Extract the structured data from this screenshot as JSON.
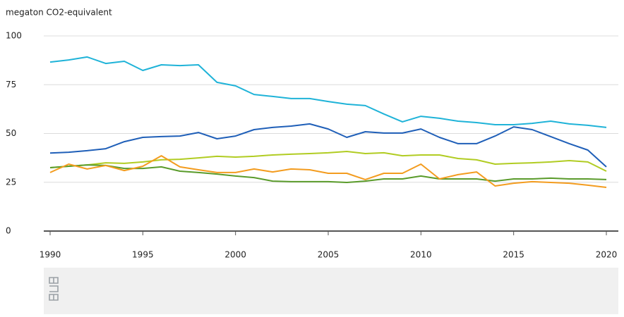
{
  "chart_data": {
    "type": "line",
    "y_label": "megaton CO2-equivalent",
    "x": [
      1990,
      1991,
      1992,
      1993,
      1994,
      1995,
      1996,
      1997,
      1998,
      1999,
      2000,
      2001,
      2002,
      2003,
      2004,
      2005,
      2006,
      2007,
      2008,
      2009,
      2010,
      2011,
      2012,
      2013,
      2014,
      2015,
      2016,
      2017,
      2018,
      2019,
      2020
    ],
    "xlim": [
      1990,
      2020
    ],
    "xticks": [
      1990,
      1995,
      2000,
      2005,
      2010,
      2015,
      2020
    ],
    "ylim": [
      0,
      100
    ],
    "yticks": [
      0,
      25,
      50,
      75,
      100
    ],
    "grid": true,
    "series": [
      {
        "color": "#1fb3d8",
        "values": [
          86.6,
          87.7,
          89.2,
          85.9,
          87,
          82.3,
          85.2,
          84.8,
          85.2,
          76.2,
          74.4,
          70,
          69,
          67.9,
          67.9,
          66.4,
          65,
          64.3,
          60,
          56,
          58.8,
          57.8,
          56.3,
          55.6,
          54.5,
          54.5,
          55.2,
          56.3,
          54.9,
          54.2,
          53.1
        ]
      },
      {
        "color": "#1f5fb8",
        "values": [
          40,
          40.4,
          41.2,
          42.2,
          45.8,
          48,
          48.4,
          48.7,
          50.5,
          47.3,
          48.7,
          52,
          53.1,
          53.8,
          54.9,
          52.3,
          48,
          50.9,
          50.2,
          50.2,
          52.3,
          48,
          44.8,
          44.8,
          48.7,
          53.4,
          52,
          48.4,
          44.8,
          41.5,
          32.9
        ]
      },
      {
        "color": "#b1cc22",
        "values": [
          32.5,
          33.2,
          33.9,
          35,
          34.7,
          35.4,
          36.5,
          36.8,
          37.5,
          38.3,
          37.9,
          38.3,
          39,
          39.4,
          39.7,
          40.1,
          40.8,
          39.7,
          40.1,
          38.6,
          39,
          39,
          37.2,
          36.5,
          34.3,
          34.7,
          35,
          35.4,
          36.1,
          35.4,
          30.7
        ]
      },
      {
        "color": "#5a9b2b",
        "values": [
          32.5,
          33.2,
          33.9,
          33.6,
          32.1,
          32.1,
          32.9,
          30.7,
          30,
          29.2,
          28.2,
          27.4,
          25.6,
          25.3,
          25.3,
          25.3,
          24.9,
          25.6,
          26.7,
          26.7,
          28.2,
          26.7,
          26.7,
          26.7,
          25.6,
          26.7,
          26.7,
          27.1,
          26.7,
          26.7,
          26.4
        ]
      },
      {
        "color": "#f39c1f",
        "values": [
          30,
          34.3,
          31.8,
          33.6,
          31,
          33.2,
          38.6,
          32.9,
          31.4,
          30,
          30,
          31.8,
          30.3,
          31.8,
          31.4,
          29.6,
          29.6,
          26.4,
          29.6,
          29.6,
          34.3,
          26.7,
          28.9,
          30.3,
          23.1,
          24.5,
          25.3,
          24.9,
          24.5,
          23.5,
          22.4
        ]
      }
    ]
  }
}
